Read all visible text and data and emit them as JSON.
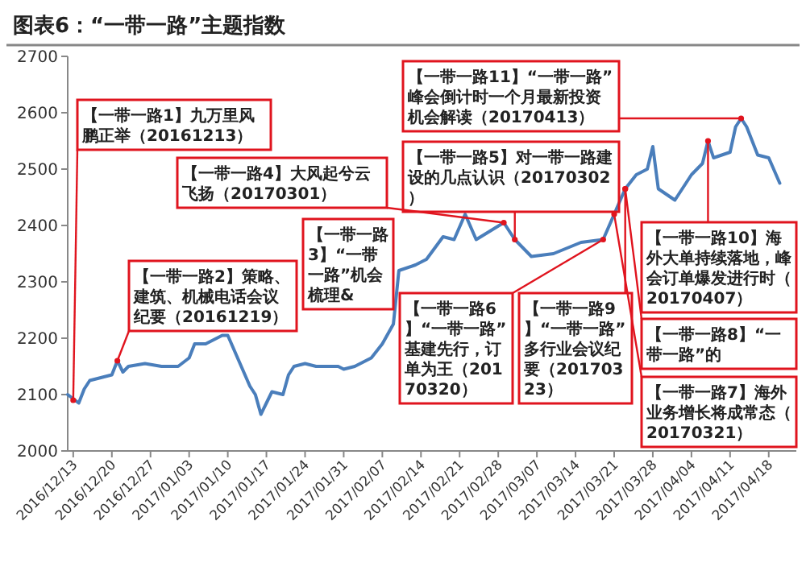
{
  "chart_data": {
    "type": "line",
    "title": "图表6：“一带一路”主题指数",
    "x": [
      "2016-12-12",
      "2016-12-14",
      "2016-12-15",
      "2016-12-16",
      "2016-12-18",
      "2016-12-20",
      "2016-12-21",
      "2016-12-22",
      "2016-12-23",
      "2016-12-26",
      "2016-12-29",
      "2017-01-01",
      "2017-01-03",
      "2017-01-04",
      "2017-01-06",
      "2017-01-08",
      "2017-01-09",
      "2017-01-10",
      "2017-01-12",
      "2017-01-14",
      "2017-01-15",
      "2017-01-16",
      "2017-01-17",
      "2017-01-18",
      "2017-01-20",
      "2017-01-21",
      "2017-01-22",
      "2017-01-24",
      "2017-01-26",
      "2017-01-28",
      "2017-01-30",
      "2017-01-31",
      "2017-02-02",
      "2017-02-05",
      "2017-02-07",
      "2017-02-09",
      "2017-02-10",
      "2017-02-13",
      "2017-02-15",
      "2017-02-18",
      "2017-02-20",
      "2017-02-22",
      "2017-02-24",
      "2017-03-01",
      "2017-03-03",
      "2017-03-06",
      "2017-03-10",
      "2017-03-15",
      "2017-03-19",
      "2017-03-23",
      "2017-03-25",
      "2017-03-27",
      "2017-03-28",
      "2017-03-29",
      "2017-04-01",
      "2017-04-04",
      "2017-04-06",
      "2017-04-07",
      "2017-04-08",
      "2017-04-11",
      "2017-04-12",
      "2017-04-13",
      "2017-04-14",
      "2017-04-15",
      "2017-04-16",
      "2017-04-18",
      "2017-04-20"
    ],
    "series": [
      {
        "color": "#4a7ebb",
        "values": [
          2100,
          2085,
          2110,
          2125,
          2130,
          2135,
          2160,
          2140,
          2150,
          2155,
          2150,
          2150,
          2165,
          2190,
          2190,
          2200,
          2205,
          2205,
          2160,
          2115,
          2100,
          2065,
          2085,
          2105,
          2100,
          2135,
          2150,
          2155,
          2150,
          2150,
          2150,
          2145,
          2150,
          2165,
          2190,
          2225,
          2320,
          2330,
          2340,
          2380,
          2375,
          2420,
          2375,
          2405,
          2375,
          2345,
          2350,
          2370,
          2375,
          2465,
          2490,
          2500,
          2540,
          2465,
          2445,
          2490,
          2510,
          2550,
          2520,
          2530,
          2575,
          2590,
          2575,
          2550,
          2525,
          2520,
          2475
        ]
      }
    ],
    "xlim": [
      "2016-12-12",
      "2017-04-23"
    ],
    "xticks": [
      {
        "value": "2016-12-13",
        "label": "2016/12/13"
      },
      {
        "value": "2016-12-20",
        "label": "2016/12/20"
      },
      {
        "value": "2016-12-27",
        "label": "2016/12/27"
      },
      {
        "value": "2017-01-03",
        "label": "2017/01/03"
      },
      {
        "value": "2017-01-10",
        "label": "2017/01/10"
      },
      {
        "value": "2017-01-17",
        "label": "2017/01/17"
      },
      {
        "value": "2017-01-24",
        "label": "2017/01/24"
      },
      {
        "value": "2017-01-31",
        "label": "2017/01/31"
      },
      {
        "value": "2017-02-07",
        "label": "2017/02/07"
      },
      {
        "value": "2017-02-14",
        "label": "2017/02/14"
      },
      {
        "value": "2017-02-21",
        "label": "2017/02/21"
      },
      {
        "value": "2017-02-28",
        "label": "2017/02/28"
      },
      {
        "value": "2017-03-07",
        "label": "2017/03/07"
      },
      {
        "value": "2017-03-14",
        "label": "2017/03/14"
      },
      {
        "value": "2017-03-21",
        "label": "2017/03/21"
      },
      {
        "value": "2017-03-28",
        "label": "2017/03/28"
      },
      {
        "value": "2017-04-04",
        "label": "2017/04/04"
      },
      {
        "value": "2017-04-11",
        "label": "2017/04/11"
      },
      {
        "value": "2017-04-18",
        "label": "2017/04/18"
      }
    ],
    "ylim": [
      2000,
      2700
    ],
    "yticks": [
      2000,
      2100,
      2200,
      2300,
      2400,
      2500,
      2600,
      2700
    ],
    "grid": false,
    "marker": "none",
    "line_style": "solid",
    "annotations": [
      {
        "text": "【一带一路1】九万里风鹏正举（20161213）",
        "x": "2016-12-13",
        "y": 2090
      },
      {
        "text": "【一带一路2】策略、建筑、机械电话会议纪要（20161219）",
        "x": "2016-12-21",
        "y": 2160
      },
      "【一带一路3】“一带一路”机会梳理&",
      {
        "text": "【一带一路4】大风起兮云飞扬（20170301）",
        "x": "2017-03-01",
        "y": 2405
      },
      {
        "text": "【一带一路5】对一带一路建设的几点认识（20170302）",
        "x": "2017-03-03",
        "y": 2375
      },
      {
        "text": "【一带一路6】“一带一路”基建先行，订单为王（20170320）",
        "x": "2017-03-19",
        "y": 2375
      },
      {
        "text": "【一带一路7】海外业务增长将成常态（20170321）",
        "x": "2017-03-21",
        "y": 2420
      },
      {
        "text": "【一带一路8】“一带一路”的",
        "x": "2017-03-23",
        "y": 2465
      },
      {
        "text": "【一带一路9】“一带一路”多行业会议纪要（20170323）",
        "x": "2017-03-23",
        "y": 2465
      },
      {
        "text": "【一带一路10】海外大单持续落地，峰会订单爆发进行时（20170407）",
        "x": "2017-04-07",
        "y": 2550
      },
      {
        "text": "【一带一路11】“一带一路”峰会倒计时一个月最新投资机会解读（20170413）",
        "x": "2017-04-13",
        "y": 2590
      }
    ]
  }
}
